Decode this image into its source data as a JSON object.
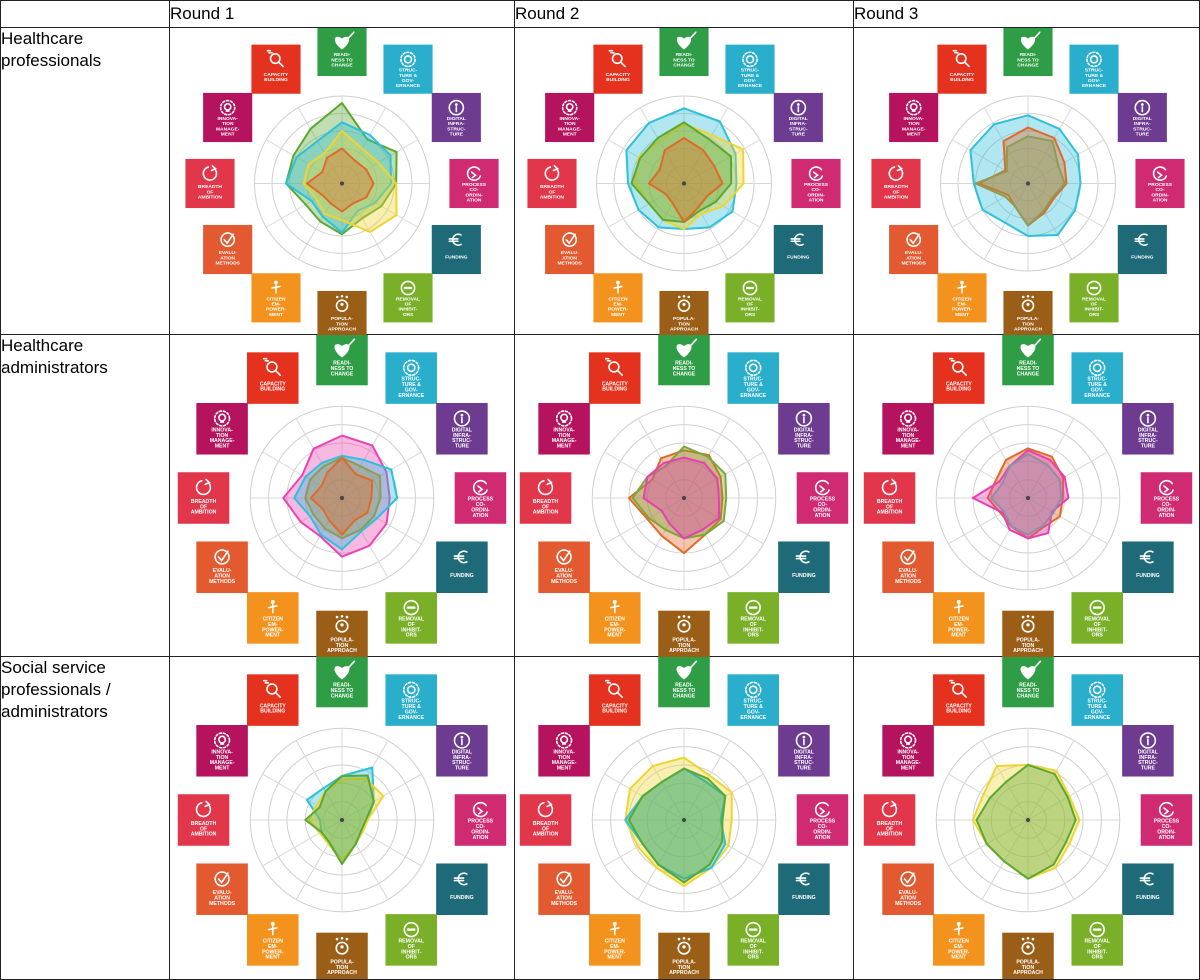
{
  "columns": [
    "",
    "Round 1",
    "Round 2",
    "Round 3"
  ],
  "rows": [
    "Healthcare professionals",
    "Healthcare administrators",
    "Social service professionals / administrators"
  ],
  "dimensions": [
    {
      "label": [
        "READI-",
        "NESS TO",
        "CHANGE"
      ],
      "color": "#2e9d46",
      "icon": "heart-arrow-icon"
    },
    {
      "label": [
        "STRUC-",
        "TURE &",
        "GOV-",
        "ERNANCE"
      ],
      "color": "#29aecb",
      "icon": "gear-icon"
    },
    {
      "label": [
        "DIGITAL",
        "INFRA-",
        "STRUC-",
        "TURE"
      ],
      "color": "#6d3b8f",
      "icon": "info-icon"
    },
    {
      "label": [
        "PROCESS",
        "CO-",
        "ORDIN-",
        "ATION"
      ],
      "color": "#cf2a72",
      "icon": "cycle-icon"
    },
    {
      "label": [
        "FUNDING"
      ],
      "color": "#1f6a78",
      "icon": "euro-icon"
    },
    {
      "label": [
        "REMOVAL",
        "OF",
        "INHIBIT-",
        "ORS"
      ],
      "color": "#7aaf28",
      "icon": "minus-icon"
    },
    {
      "label": [
        "POPULA-",
        "TION",
        "APPROACH"
      ],
      "color": "#9b5e17",
      "icon": "population-icon"
    },
    {
      "label": [
        "CITIZEN",
        "EM-",
        "POWER-",
        "MENT"
      ],
      "color": "#f3931e",
      "icon": "person-icon"
    },
    {
      "label": [
        "EVALU-",
        "ATION",
        "METHODS"
      ],
      "color": "#e35a31",
      "icon": "check-icon"
    },
    {
      "label": [
        "BREADTH",
        "OF",
        "AMBITION"
      ],
      "color": "#e2374a",
      "icon": "circle-arrow-icon"
    },
    {
      "label": [
        "INNOVA-",
        "TION",
        "MANAGE-",
        "MENT"
      ],
      "color": "#b5135e",
      "icon": "bulb-icon"
    },
    {
      "label": [
        "CAPACITY",
        "BUILDING"
      ],
      "color": "#e5321f",
      "icon": "magnifier-icon"
    }
  ],
  "chart_data": [
    {
      "type": "radar",
      "row": "Healthcare professionals",
      "column": "Round 1",
      "max": 5,
      "series": [
        {
          "color": "#5aa832",
          "values": [
            4.6,
            2.9,
            3.6,
            3.1,
            2.6,
            2.3,
            2.9,
            2.5,
            2.4,
            3.2,
            3.2,
            3.6
          ]
        },
        {
          "color": "#2fc0da",
          "values": [
            3.5,
            3.2,
            3.2,
            2.8,
            2.2,
            1.8,
            2.8,
            2.2,
            2.0,
            3.2,
            3.0,
            2.8
          ]
        },
        {
          "color": "#f0d430",
          "values": [
            3.0,
            2.3,
            2.4,
            3.1,
            3.6,
            3.2,
            2.1,
            2.0,
            1.7,
            2.2,
            2.2,
            2.0
          ]
        },
        {
          "color": "#e16a28",
          "values": [
            2.0,
            1.5,
            1.6,
            1.8,
            1.6,
            1.3,
            1.6,
            1.3,
            1.3,
            2.0,
            1.3,
            1.7
          ]
        }
      ]
    },
    {
      "type": "radar",
      "row": "Healthcare professionals",
      "column": "Round 2",
      "max": 5,
      "series": [
        {
          "color": "#2fc0da",
          "values": [
            4.3,
            4.1,
            3.4,
            3.0,
            3.2,
            2.9,
            2.6,
            2.9,
            3.0,
            3.2,
            3.8,
            4.0
          ]
        },
        {
          "color": "#f0d430",
          "values": [
            3.4,
            3.2,
            3.9,
            3.4,
            2.6,
            2.0,
            2.6,
            2.4,
            2.3,
            2.8,
            3.0,
            2.8
          ]
        },
        {
          "color": "#5aa832",
          "values": [
            3.5,
            2.9,
            3.1,
            2.7,
            2.1,
            1.8,
            2.2,
            2.4,
            2.3,
            3.0,
            2.9,
            3.0
          ]
        },
        {
          "color": "#e16a28",
          "values": [
            2.6,
            2.2,
            2.0,
            2.2,
            1.5,
            1.6,
            2.2,
            1.3,
            1.2,
            2.0,
            1.6,
            2.2
          ]
        }
      ]
    },
    {
      "type": "radar",
      "row": "Healthcare professionals",
      "column": "Round 3",
      "max": 5,
      "series": [
        {
          "color": "#2fc0da",
          "values": [
            3.9,
            3.6,
            3.3,
            3.0,
            3.1,
            3.4,
            3.0,
            2.6,
            3.0,
            3.1,
            3.8,
            3.9
          ]
        },
        {
          "color": "#e16a28",
          "values": [
            3.2,
            3.0,
            2.4,
            2.2,
            1.7,
            1.9,
            2.4,
            1.5,
            1.3,
            2.8,
            1.5,
            2.8
          ]
        },
        {
          "color": "#8e9c55",
          "values": [
            2.7,
            2.8,
            2.0,
            2.1,
            1.6,
            1.8,
            2.4,
            1.5,
            1.5,
            3.0,
            1.4,
            2.4
          ]
        }
      ]
    },
    {
      "type": "radar",
      "row": "Healthcare administrators",
      "column": "Round 1",
      "max": 5,
      "series": [
        {
          "color": "#ea44b4",
          "values": [
            3.4,
            3.3,
            2.8,
            2.6,
            2.8,
            3.0,
            3.2,
            2.4,
            2.6,
            3.2,
            2.5,
            3.1
          ]
        },
        {
          "color": "#2fc0da",
          "values": [
            2.3,
            2.4,
            3.1,
            3.0,
            2.2,
            2.1,
            2.8,
            2.3,
            2.0,
            2.6,
            2.3,
            2.2
          ]
        },
        {
          "color": "#8e9c55",
          "values": [
            2.2,
            2.0,
            2.4,
            2.1,
            2.0,
            2.0,
            2.2,
            1.9,
            1.8,
            2.0,
            2.0,
            2.0
          ]
        },
        {
          "color": "#e16a28",
          "values": [
            2.2,
            1.5,
            1.9,
            1.6,
            1.6,
            1.4,
            2.0,
            1.4,
            1.2,
            1.7,
            1.3,
            1.6
          ]
        }
      ]
    },
    {
      "type": "radar",
      "row": "Healthcare administrators",
      "column": "Round 2",
      "max": 5,
      "series": [
        {
          "color": "#e16a28",
          "values": [
            2.6,
            2.7,
            2.3,
            2.1,
            2.3,
            2.3,
            3.0,
            2.4,
            2.3,
            3.0,
            2.0,
            2.5
          ]
        },
        {
          "color": "#7aa83a",
          "values": [
            2.8,
            2.6,
            2.6,
            2.3,
            2.5,
            2.3,
            2.2,
            2.0,
            2.2,
            2.8,
            2.3,
            2.0
          ]
        },
        {
          "color": "#e83fb5",
          "values": [
            2.2,
            2.2,
            2.1,
            1.9,
            2.2,
            2.0,
            2.2,
            1.6,
            1.4,
            2.2,
            2.3,
            2.2
          ]
        }
      ]
    },
    {
      "type": "radar",
      "row": "Healthcare administrators",
      "column": "Round 3",
      "max": 5,
      "series": [
        {
          "color": "#e16a28",
          "values": [
            2.7,
            2.6,
            2.2,
            1.9,
            2.0,
            1.8,
            2.2,
            1.8,
            1.7,
            2.2,
            2.0,
            2.4
          ]
        },
        {
          "color": "#e83fb5",
          "values": [
            2.6,
            2.4,
            2.3,
            2.2,
            1.5,
            2.2,
            2.2,
            2.0,
            1.6,
            3.0,
            1.8,
            2.0
          ]
        },
        {
          "color": "#8f8da8",
          "values": [
            2.4,
            2.1,
            2.0,
            1.8,
            1.6,
            1.7,
            2.0,
            1.8,
            1.5,
            2.0,
            1.6,
            2.0
          ]
        }
      ]
    },
    {
      "type": "radar",
      "row": "Social service professionals / administrators",
      "column": "Round 1",
      "max": 5,
      "series": [
        {
          "color": "#2fc0da",
          "values": [
            2.4,
            3.3,
            2.0,
            1.4,
            1.2,
            1.5,
            2.2,
            1.4,
            1.3,
            1.2,
            2.2,
            2.0
          ]
        },
        {
          "color": "#f0d430",
          "values": [
            2.2,
            2.6,
            2.6,
            1.4,
            1.3,
            1.5,
            2.2,
            1.5,
            1.4,
            1.8,
            1.6,
            1.8
          ]
        },
        {
          "color": "#5aa832",
          "values": [
            2.4,
            2.8,
            2.0,
            1.3,
            1.2,
            1.5,
            2.4,
            1.4,
            1.3,
            2.0,
            1.4,
            1.8
          ]
        }
      ]
    },
    {
      "type": "radar",
      "row": "Social service professionals / administrators",
      "column": "Round 2",
      "max": 5,
      "series": [
        {
          "color": "#f0d430",
          "values": [
            3.4,
            2.8,
            3.0,
            2.6,
            2.8,
            3.0,
            3.6,
            3.0,
            2.9,
            3.2,
            3.4,
            3.4
          ]
        },
        {
          "color": "#2fc0da",
          "values": [
            2.8,
            2.4,
            2.6,
            2.0,
            2.6,
            3.0,
            3.2,
            2.8,
            2.6,
            3.2,
            2.6,
            2.4
          ]
        },
        {
          "color": "#5aa832",
          "values": [
            2.8,
            2.6,
            2.6,
            2.1,
            2.4,
            2.8,
            3.4,
            2.8,
            2.6,
            3.0,
            2.6,
            2.4
          ]
        }
      ]
    },
    {
      "type": "radar",
      "row": "Social service professionals / administrators",
      "column": "Round 3",
      "max": 5,
      "series": [
        {
          "color": "#f0d430",
          "values": [
            3.0,
            3.1,
            2.6,
            2.8,
            2.6,
            3.0,
            3.2,
            2.6,
            2.6,
            3.0,
            2.8,
            3.4
          ]
        },
        {
          "color": "#5aa832",
          "values": [
            3.0,
            2.9,
            2.5,
            2.6,
            2.4,
            2.8,
            3.2,
            2.6,
            2.6,
            2.8,
            2.4,
            2.4
          ]
        }
      ]
    }
  ]
}
